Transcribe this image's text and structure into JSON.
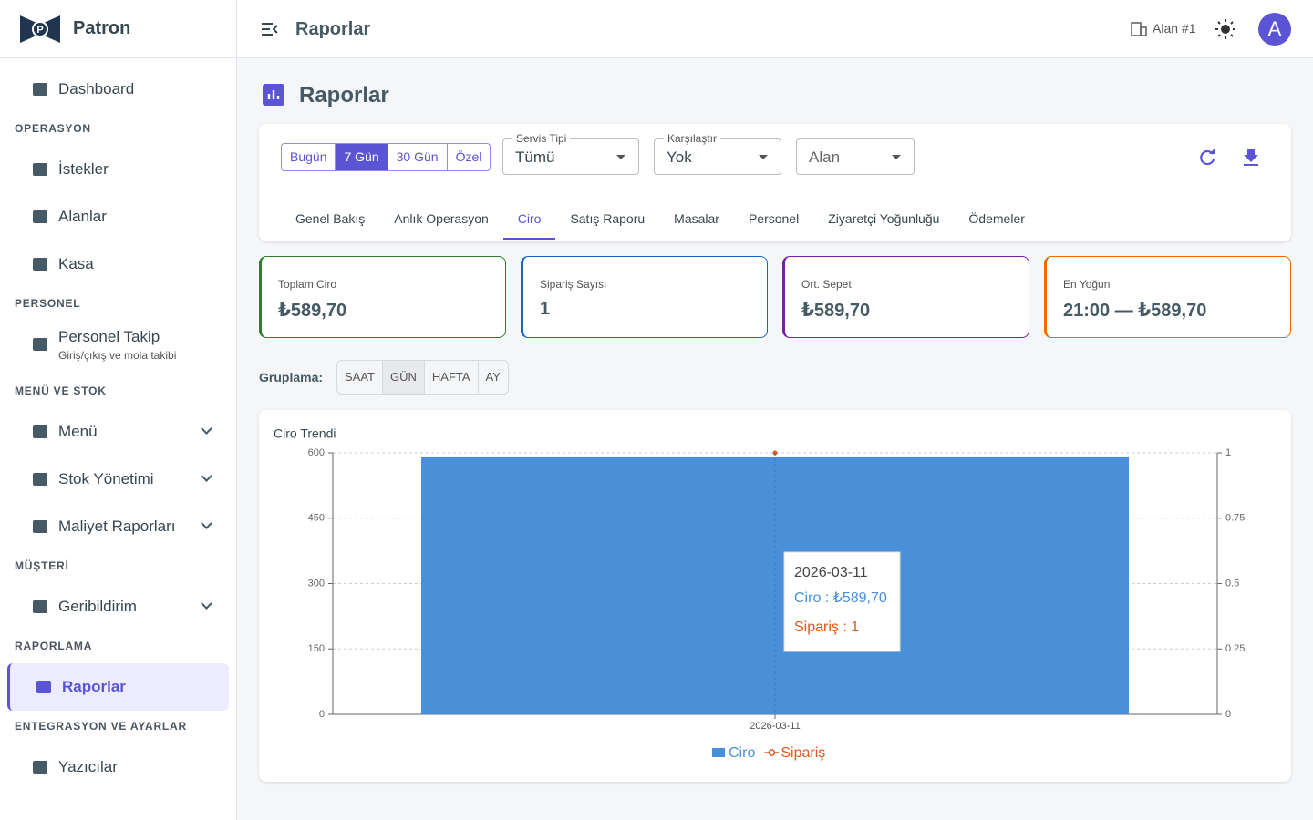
{
  "sidebar": {
    "brand": "Patron",
    "top": {
      "label": "Dashboard"
    },
    "sections": [
      {
        "title": "OPERASYON",
        "items": [
          {
            "label": "İstekler"
          },
          {
            "label": "Alanlar"
          },
          {
            "label": "Kasa"
          }
        ]
      },
      {
        "title": "PERSONEL",
        "items": [
          {
            "label": "Personel Takip",
            "sublabel": "Giriş/çıkış ve mola takibi"
          }
        ]
      },
      {
        "title": "MENÜ VE STOK",
        "items": [
          {
            "label": "Menü",
            "expandable": true
          },
          {
            "label": "Stok Yönetimi",
            "expandable": true
          },
          {
            "label": "Maliyet Raporları",
            "expandable": true
          }
        ]
      },
      {
        "title": "MÜŞTERİ",
        "items": [
          {
            "label": "Geribildirim",
            "expandable": true
          }
        ]
      },
      {
        "title": "RAPORLAMA",
        "items": [
          {
            "label": "Raporlar",
            "active": true
          }
        ]
      },
      {
        "title": "ENTEGRASYON VE AYARLAR",
        "items": [
          {
            "label": "Yazıcılar"
          }
        ]
      }
    ]
  },
  "header": {
    "title": "Raporlar",
    "site": "Alan #1",
    "avatar": "A"
  },
  "page": {
    "title": "Raporlar",
    "ranges": [
      {
        "label": "Bugün"
      },
      {
        "label": "7 Gün",
        "active": true
      },
      {
        "label": "30 Gün"
      },
      {
        "label": "Özel"
      }
    ],
    "filters": [
      {
        "label": "Servis Tipi",
        "value": "Tümü"
      },
      {
        "label": "Karşılaştır",
        "value": "Yok"
      },
      {
        "placeholder": "Alan"
      }
    ],
    "tabs": [
      {
        "label": "Genel Bakış"
      },
      {
        "label": "Anlık Operasyon"
      },
      {
        "label": "Ciro",
        "active": true
      },
      {
        "label": "Satış Raporu"
      },
      {
        "label": "Masalar"
      },
      {
        "label": "Personel"
      },
      {
        "label": "Ziyaretçi Yoğunluğu"
      },
      {
        "label": "Ödemeler"
      }
    ],
    "cards": [
      {
        "label": "Toplam Ciro",
        "value": "₺589,70",
        "color": "#2e7d32"
      },
      {
        "label": "Sipariş Sayısı",
        "value": "1",
        "color": "#1565c0"
      },
      {
        "label": "Ort. Sepet",
        "value": "₺589,70",
        "color": "#7b1fa2"
      },
      {
        "label": "En Yoğun",
        "value": "21:00 — ₺589,70",
        "color": "#ef6c00"
      }
    ],
    "grouping": {
      "label": "Gruplama:",
      "options": [
        {
          "label": "SAAT"
        },
        {
          "label": "GÜN",
          "active": true
        },
        {
          "label": "HAFTA"
        },
        {
          "label": "AY"
        }
      ]
    }
  },
  "chart_data": {
    "type": "bar",
    "title": "Ciro Trendi",
    "categories": [
      "2026-03-11"
    ],
    "series": [
      {
        "name": "Ciro",
        "color": "#4a90d9",
        "values": [
          589.7
        ]
      },
      {
        "name": "Sipariş",
        "color": "#e0561b",
        "values": [
          1
        ],
        "axis": "y2",
        "type": "line"
      }
    ],
    "ylim": [
      0,
      600
    ],
    "yticks": [
      0,
      150,
      300,
      450,
      600
    ],
    "y2lim": [
      0,
      1
    ],
    "y2ticks": [
      0,
      0.25,
      0.5,
      0.75,
      1
    ],
    "grid": true,
    "legend": "bottom",
    "tooltip": {
      "title": "2026-03-11",
      "lines": [
        "Ciro : ₺589,70",
        "Sipariş : 1"
      ]
    }
  }
}
